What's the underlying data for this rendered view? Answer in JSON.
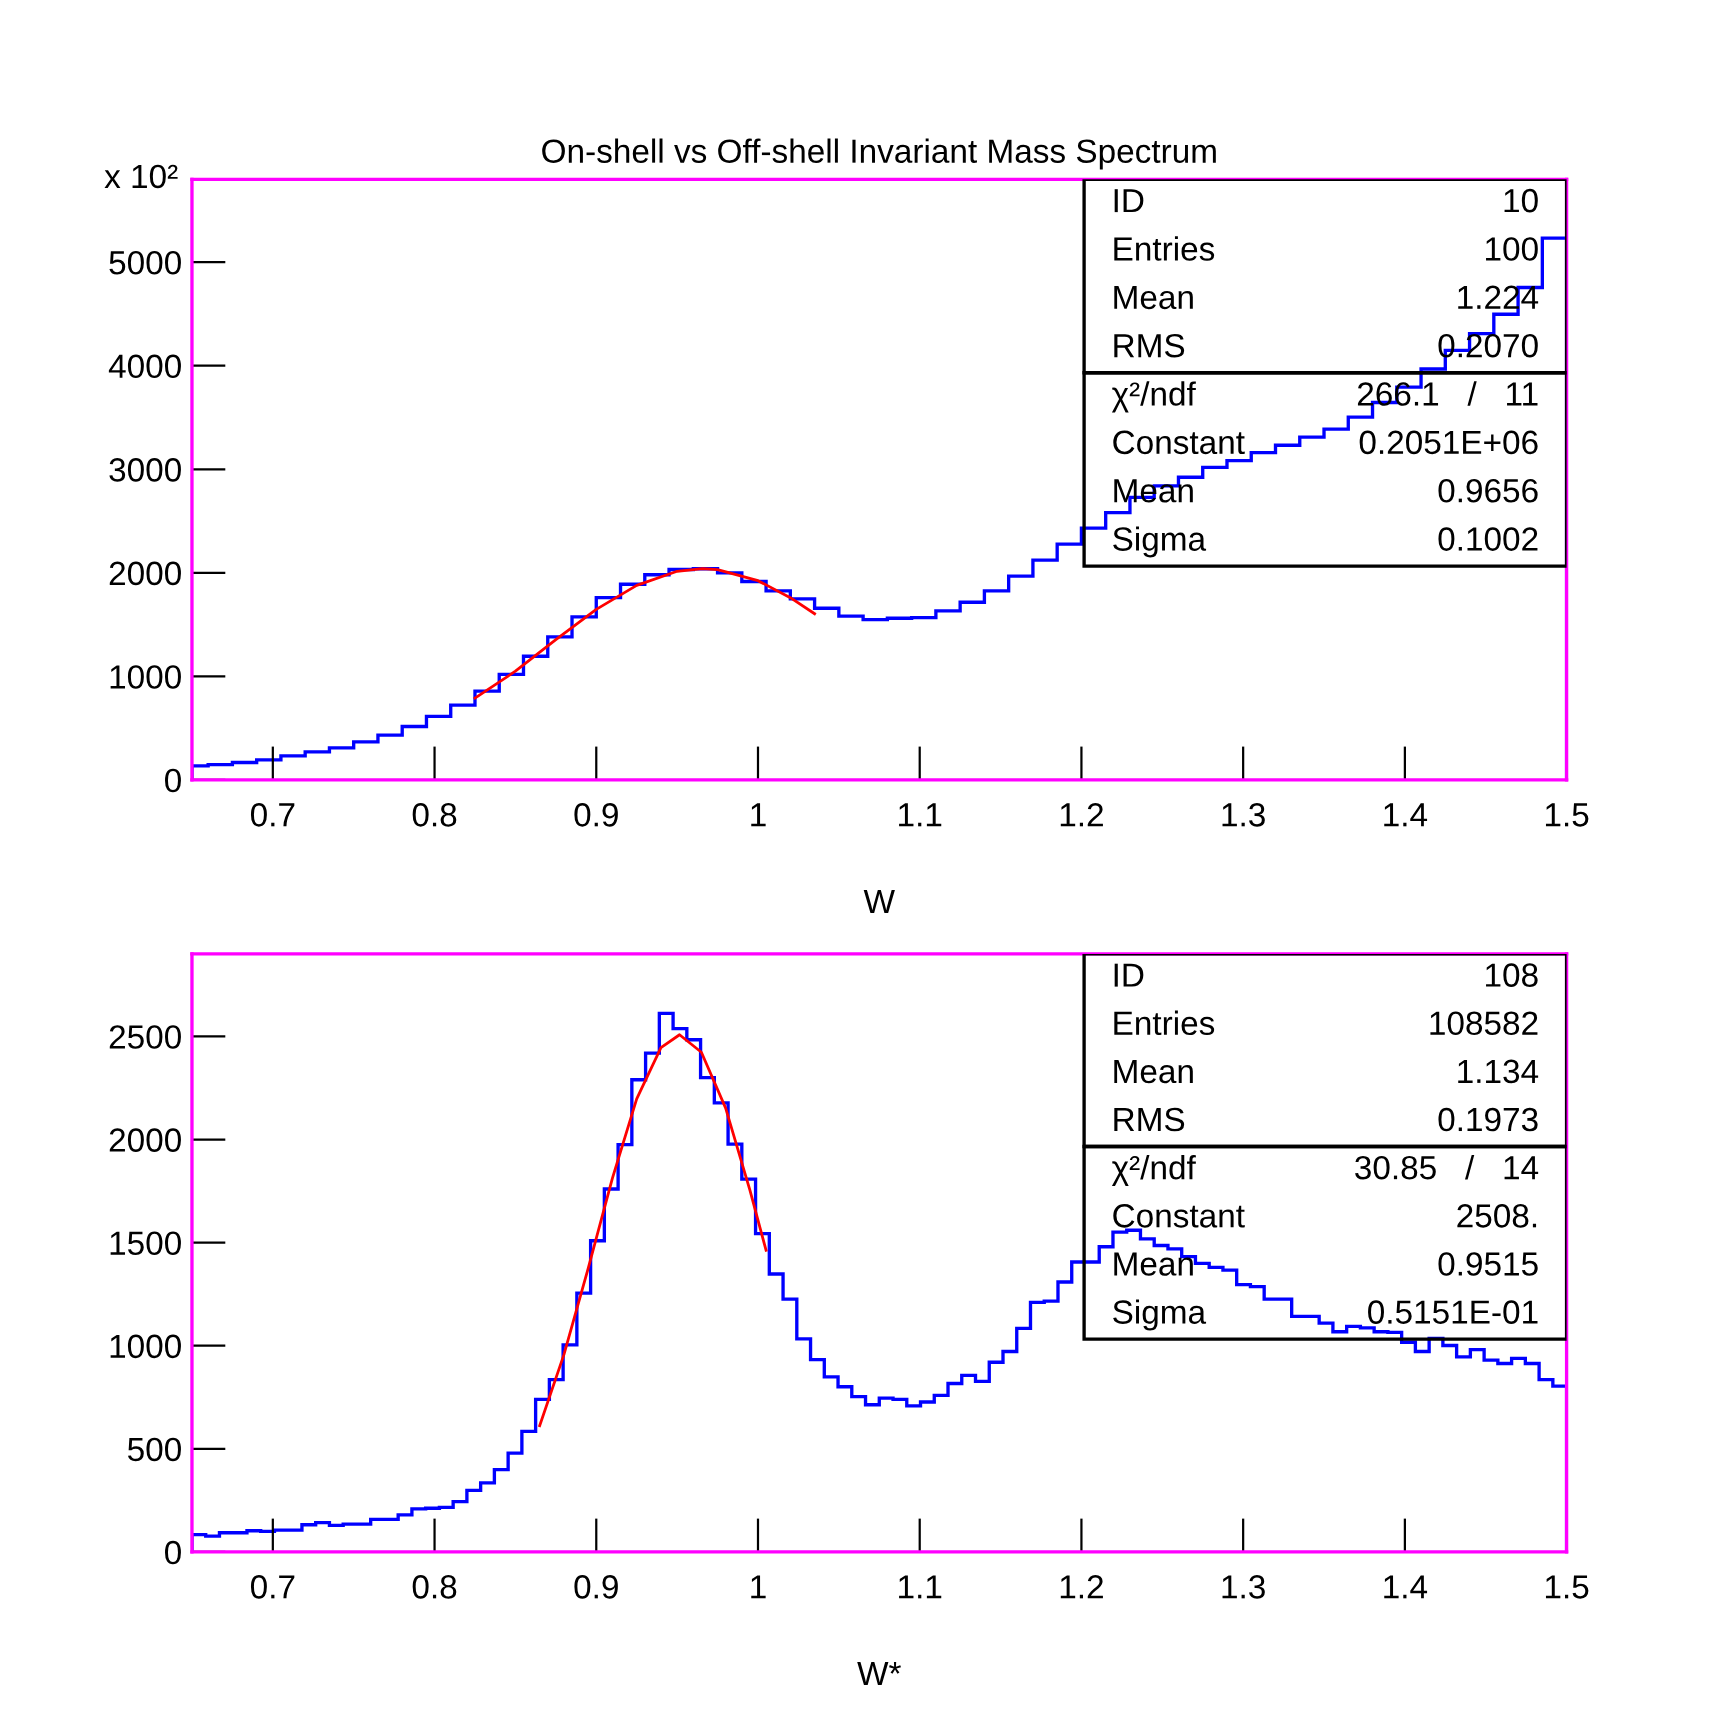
{
  "chart_data": [
    {
      "type": "histogram",
      "title": "On-shell vs Off-shell Invariant Mass Spectrum",
      "xlabel": "W",
      "ylabel": "x 10²",
      "bins": [
        0.65,
        0.66,
        0.675,
        0.69,
        0.705,
        0.72,
        0.735,
        0.75,
        0.765,
        0.78,
        0.795,
        0.81,
        0.825,
        0.84,
        0.855,
        0.87,
        0.885,
        0.9,
        0.915,
        0.93,
        0.945,
        0.96,
        0.975,
        0.99,
        1.005,
        1.02,
        1.035,
        1.05,
        1.065,
        1.08,
        1.095,
        1.11,
        1.125,
        1.14,
        1.155,
        1.17,
        1.185,
        1.2,
        1.215,
        1.23,
        1.245,
        1.26,
        1.275,
        1.29,
        1.305,
        1.32,
        1.335,
        1.35,
        1.365,
        1.38,
        1.395,
        1.41,
        1.425,
        1.44,
        1.455,
        1.47,
        1.485,
        1.5
      ],
      "values": [
        135,
        148,
        168,
        194,
        232,
        271,
        310,
        368,
        432,
        516,
        613,
        723,
        858,
        1019,
        1194,
        1381,
        1574,
        1761,
        1890,
        1981,
        2032,
        2039,
        2000,
        1916,
        1826,
        1748,
        1658,
        1581,
        1548,
        1561,
        1568,
        1632,
        1716,
        1826,
        1968,
        2123,
        2277,
        2432,
        2581,
        2729,
        2839,
        2923,
        3019,
        3084,
        3161,
        3232,
        3310,
        3387,
        3503,
        3645,
        3794,
        3968,
        4148,
        4310,
        4497,
        4755,
        5232
      ],
      "color": "#0000ff",
      "series": [
        {
          "type": "line",
          "color": "#ff0000",
          "x": [
            0.825,
            0.85,
            0.875,
            0.9,
            0.925,
            0.95,
            0.9656,
            0.975,
            1.0,
            1.02,
            1.035
          ],
          "values": [
            790,
            1050,
            1355,
            1647,
            1879,
            2015,
            2040,
            2031,
            1924,
            1760,
            1605
          ]
        }
      ],
      "xlim": [
        0.65,
        1.5
      ],
      "xticks": [
        0.7,
        0.8,
        0.9,
        1,
        1.1,
        1.2,
        1.3,
        1.4,
        1.5
      ],
      "ylim": [
        0,
        5800
      ],
      "yticks": [
        0,
        1000,
        2000,
        3000,
        4000,
        5000
      ],
      "grid": false,
      "legend": false,
      "annotations": [
        "ID",
        "10",
        "Entries",
        "100",
        "Mean",
        "1.224",
        "RMS",
        "0.2070",
        "χ²/ndf",
        "266.1   /   11",
        "Constant",
        "0.2051E+06",
        "Mean",
        "0.9656",
        "Sigma",
        "0.1002"
      ]
    },
    {
      "type": "histogram",
      "xlabel": "W*",
      "bins": [
        0.65,
        0.6585,
        0.667,
        0.6755,
        0.684,
        0.6925,
        0.701,
        0.7095,
        0.718,
        0.7265,
        0.735,
        0.7435,
        0.752,
        0.7605,
        0.769,
        0.7775,
        0.786,
        0.7945,
        0.803,
        0.8115,
        0.82,
        0.8285,
        0.837,
        0.8455,
        0.854,
        0.8625,
        0.871,
        0.8795,
        0.888,
        0.8965,
        0.905,
        0.9135,
        0.922,
        0.9305,
        0.939,
        0.9475,
        0.956,
        0.9645,
        0.973,
        0.9815,
        0.99,
        0.9985,
        1.007,
        1.0155,
        1.024,
        1.0325,
        1.041,
        1.0495,
        1.058,
        1.0665,
        1.075,
        1.0835,
        1.092,
        1.1005,
        1.109,
        1.1175,
        1.126,
        1.1345,
        1.143,
        1.1515,
        1.16,
        1.1685,
        1.177,
        1.1855,
        1.194,
        1.2025,
        1.211,
        1.2195,
        1.228,
        1.2365,
        1.245,
        1.2535,
        1.262,
        1.2705,
        1.279,
        1.2875,
        1.296,
        1.3045,
        1.313,
        1.3215,
        1.33,
        1.3385,
        1.347,
        1.3555,
        1.364,
        1.3725,
        1.381,
        1.3895,
        1.398,
        1.4065,
        1.415,
        1.4235,
        1.432,
        1.4405,
        1.449,
        1.4575,
        1.466,
        1.4745,
        1.483,
        1.4915,
        1.5
      ],
      "values": [
        84,
        77,
        93,
        93,
        103,
        100,
        106,
        106,
        132,
        142,
        129,
        135,
        135,
        158,
        158,
        180,
        209,
        212,
        216,
        244,
        299,
        335,
        399,
        479,
        585,
        740,
        836,
        1004,
        1255,
        1509,
        1760,
        1975,
        2290,
        2419,
        2612,
        2538,
        2484,
        2300,
        2178,
        1978,
        1808,
        1544,
        1348,
        1226,
        1033,
        933,
        849,
        801,
        753,
        714,
        746,
        740,
        708,
        727,
        759,
        817,
        856,
        827,
        920,
        972,
        1084,
        1210,
        1216,
        1309,
        1406,
        1406,
        1480,
        1551,
        1560,
        1518,
        1486,
        1470,
        1432,
        1399,
        1380,
        1367,
        1296,
        1287,
        1226,
        1226,
        1142,
        1142,
        1110,
        1068,
        1094,
        1087,
        1068,
        1065,
        1017,
        972,
        1036,
        1001,
        946,
        981,
        930,
        914,
        939,
        914,
        836,
        804
      ],
      "color": "#0000ff",
      "series": [
        {
          "type": "line",
          "color": "#ff0000",
          "x": [
            0.865,
            0.88,
            0.895,
            0.91,
            0.925,
            0.94,
            0.9515,
            0.965,
            0.98,
            0.995,
            1.005
          ],
          "values": [
            612,
            957,
            1375,
            1813,
            2197,
            2446,
            2508,
            2423,
            2152,
            1755,
            1463
          ]
        }
      ],
      "xlim": [
        0.65,
        1.5
      ],
      "xticks": [
        0.7,
        0.8,
        0.9,
        1,
        1.1,
        1.2,
        1.3,
        1.4,
        1.5
      ],
      "ylim": [
        0,
        2900
      ],
      "yticks": [
        0,
        500,
        1000,
        1500,
        2000,
        2500
      ],
      "grid": false,
      "legend": false,
      "annotations": [
        "ID",
        "108",
        "Entries",
        "108582",
        "Mean",
        "1.134",
        "RMS",
        "0.1973",
        "χ²/ndf",
        "30.85   /   14",
        "Constant",
        "2508.",
        "Mean",
        "0.9515",
        "Sigma",
        "0.5151E-01"
      ]
    }
  ]
}
